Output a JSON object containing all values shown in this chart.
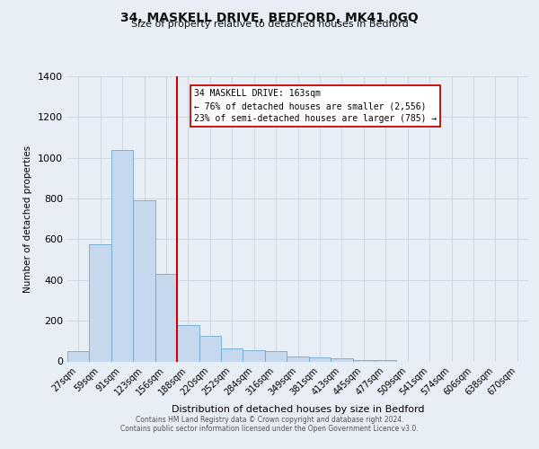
{
  "title": "34, MASKELL DRIVE, BEDFORD, MK41 0GQ",
  "subtitle": "Size of property relative to detached houses in Bedford",
  "xlabel": "Distribution of detached houses by size in Bedford",
  "ylabel": "Number of detached properties",
  "bar_labels": [
    "27sqm",
    "59sqm",
    "91sqm",
    "123sqm",
    "156sqm",
    "188sqm",
    "220sqm",
    "252sqm",
    "284sqm",
    "316sqm",
    "349sqm",
    "381sqm",
    "413sqm",
    "445sqm",
    "477sqm",
    "509sqm",
    "541sqm",
    "574sqm",
    "606sqm",
    "638sqm",
    "670sqm"
  ],
  "bar_values": [
    50,
    575,
    1040,
    790,
    430,
    178,
    125,
    65,
    55,
    50,
    25,
    20,
    15,
    8,
    5,
    0,
    0,
    0,
    0,
    0,
    0
  ],
  "bar_color": "#c5d8ed",
  "bar_edge_color": "#6fa8d0",
  "vline_index": 4,
  "vline_color": "#cc0000",
  "ylim": [
    0,
    1400
  ],
  "yticks": [
    0,
    200,
    400,
    600,
    800,
    1000,
    1200,
    1400
  ],
  "annotation_title": "34 MASKELL DRIVE: 163sqm",
  "annotation_line1": "← 76% of detached houses are smaller (2,556)",
  "annotation_line2": "23% of semi-detached houses are larger (785) →",
  "annotation_box_facecolor": "#ffffff",
  "annotation_box_edgecolor": "#cc0000",
  "footer_line1": "Contains HM Land Registry data © Crown copyright and database right 2024.",
  "footer_line2": "Contains public sector information licensed under the Open Government Licence v3.0.",
  "background_color": "#e8eef5",
  "plot_background": "#e8eef5",
  "grid_color": "#c8d4e0"
}
